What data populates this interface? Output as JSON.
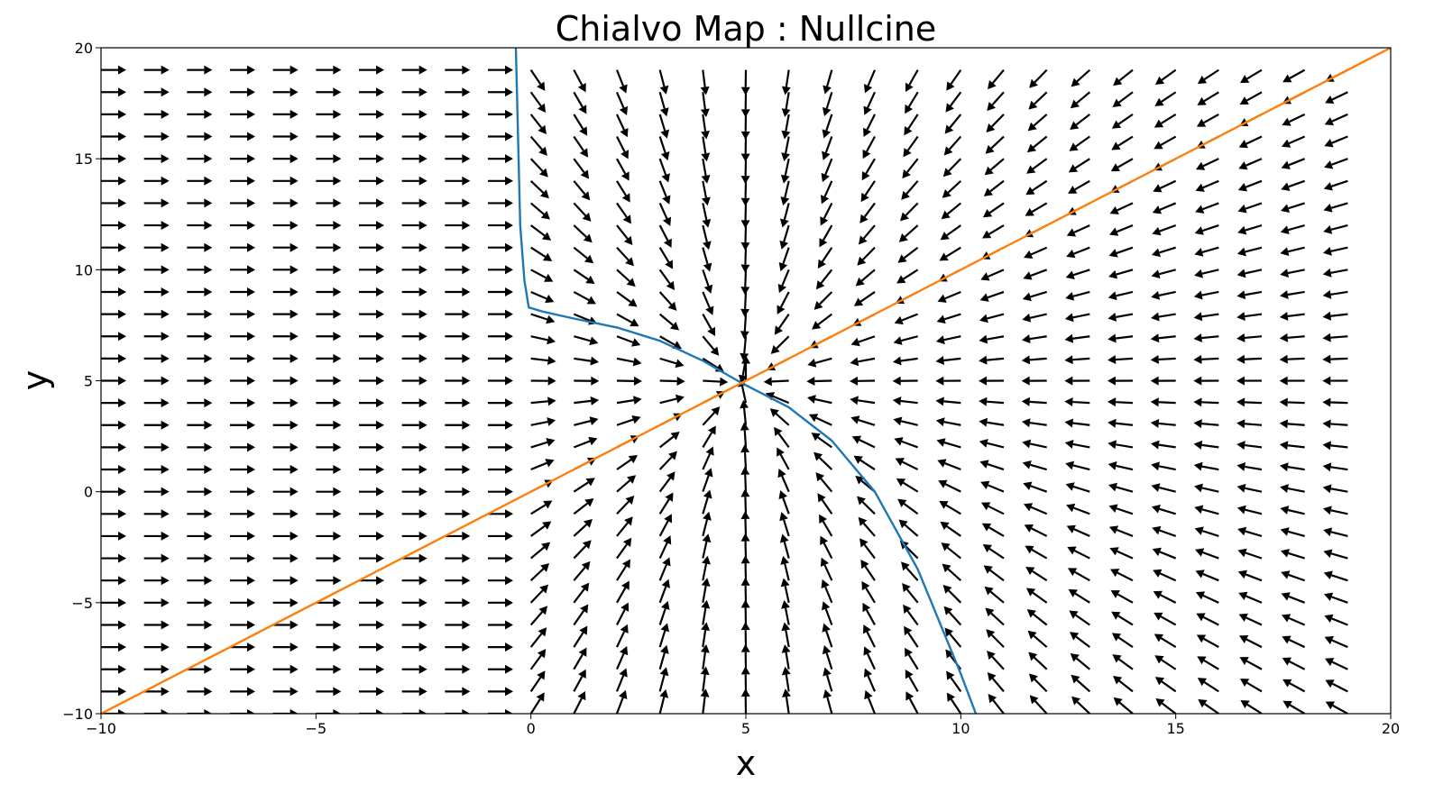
{
  "chart_data": {
    "type": "quiver",
    "title": "Chialvo Map : Nullcine",
    "xlabel": "x",
    "ylabel": "y",
    "xlim": [
      -10,
      20
    ],
    "ylim": [
      -10,
      20
    ],
    "xticks": [
      -10,
      -5,
      0,
      5,
      10,
      15,
      20
    ],
    "yticks": [
      -10,
      -5,
      0,
      5,
      10,
      15,
      20
    ],
    "tick_labels_x": [
      "−10",
      "−5",
      "0",
      "5",
      "10",
      "15",
      "20"
    ],
    "tick_labels_y": [
      "−10",
      "−5",
      "0",
      "5",
      "10",
      "15",
      "20"
    ],
    "grid": false,
    "vector_field": {
      "x_values": [
        -10,
        -9,
        -8,
        -7,
        -6,
        -5,
        -4,
        -3,
        -2,
        -1,
        0,
        1,
        2,
        3,
        4,
        5,
        6,
        7,
        8,
        9,
        10,
        11,
        12,
        13,
        14,
        15,
        16,
        17,
        18,
        19
      ],
      "y_values": [
        -10,
        -9,
        -8,
        -7,
        -6,
        -5,
        -4,
        -3,
        -2,
        -1,
        0,
        1,
        2,
        3,
        4,
        5,
        6,
        7,
        8,
        9,
        10,
        11,
        12,
        13,
        14,
        15,
        16,
        17,
        18,
        19
      ],
      "arrow_color": "#000000",
      "fixed_point": [
        4.9,
        4.9
      ],
      "description_of_flow": "arrows point in +x direction for x < 0 and converge toward the fixed point near (4.9, 4.9) for x >= 0"
    },
    "series": [
      {
        "color": "#1f77b4",
        "points": [
          [
            -0.35,
            20
          ],
          [
            -0.3,
            16
          ],
          [
            -0.25,
            12
          ],
          [
            -0.15,
            9.5
          ],
          [
            -0.05,
            8.3
          ],
          [
            0.3,
            8.1
          ],
          [
            1,
            7.8
          ],
          [
            2,
            7.4
          ],
          [
            3,
            6.8
          ],
          [
            4,
            5.9
          ],
          [
            4.9,
            4.9
          ],
          [
            5.5,
            4.3
          ],
          [
            6,
            3.8
          ],
          [
            7,
            2.3
          ],
          [
            8,
            0
          ],
          [
            9,
            -3.5
          ],
          [
            10,
            -8.2
          ],
          [
            10.35,
            -10
          ]
        ]
      },
      {
        "color": "#ff7f0e",
        "points": [
          [
            -10,
            -10
          ],
          [
            20,
            20
          ]
        ]
      }
    ]
  }
}
